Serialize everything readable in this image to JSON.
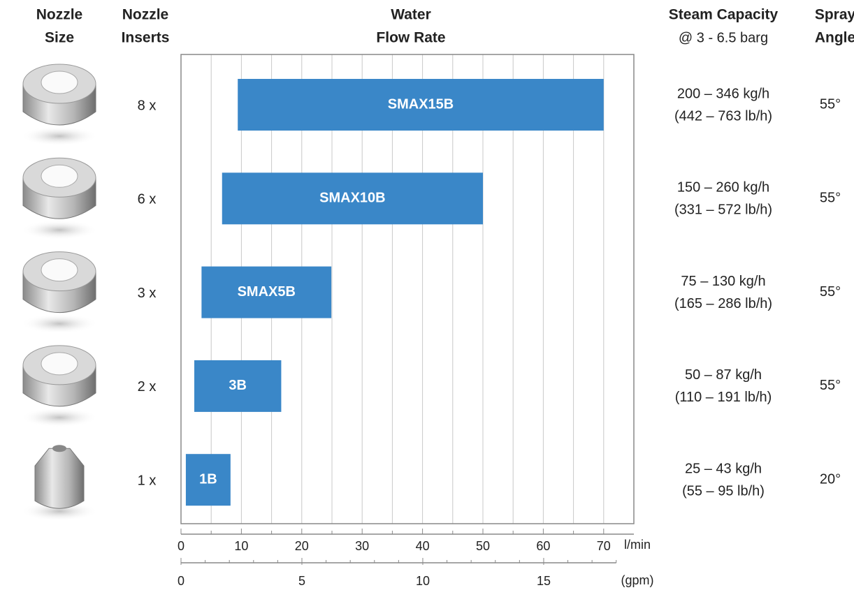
{
  "chart_data": {
    "type": "range-bar",
    "title": [
      "Water",
      "Flow Rate"
    ],
    "categories": [
      "SMAX15B",
      "SMAX10B",
      "SMAX5B",
      "3B",
      "1B"
    ],
    "low": [
      9.4,
      6.8,
      3.4,
      2.2,
      0.8
    ],
    "high": [
      70,
      50,
      24.9,
      16.6,
      8.2
    ],
    "color": "#3a87c8",
    "xlim": [
      0,
      75
    ],
    "xticks": [
      0,
      10,
      20,
      30,
      40,
      50,
      60,
      70
    ],
    "xminorticks": [
      5,
      15,
      25,
      35,
      45,
      55,
      65
    ],
    "xlabel": "l/min",
    "x2lim": [
      0,
      18.73
    ],
    "x2ticks": [
      0,
      5,
      10,
      15
    ],
    "x2minorticks": [
      1,
      2,
      3,
      4,
      6,
      7,
      8,
      9,
      11,
      12,
      13,
      14,
      16,
      17,
      18
    ],
    "x2label": "(gpm)",
    "grid": true
  },
  "table": {
    "headers": {
      "nozzle_size": [
        "Nozzle",
        "Size"
      ],
      "nozzle_inserts": [
        "Nozzle",
        "Inserts"
      ],
      "steam_capacity": [
        "Steam Capacity",
        "@ 3 - 6.5 barg"
      ],
      "spray_angle": [
        "Spray",
        "Angle"
      ]
    },
    "inserts": [
      "8 x",
      "6 x",
      "3 x",
      "2 x",
      "1 x"
    ],
    "steam_capacity": [
      [
        "200 – 346 kg/h",
        "(442 – 763 lb/h)"
      ],
      [
        "150 – 260 kg/h",
        "(331 – 572 lb/h)"
      ],
      [
        "75 – 130 kg/h",
        "(165 – 286 lb/h)"
      ],
      [
        "50 – 87 kg/h",
        "(110 – 191 lb/h)"
      ],
      [
        "25 – 43 kg/h",
        "(55 – 95 lb/h)"
      ]
    ],
    "spray_angle": [
      "55°",
      "55°",
      "55°",
      "55°",
      "20°"
    ]
  }
}
